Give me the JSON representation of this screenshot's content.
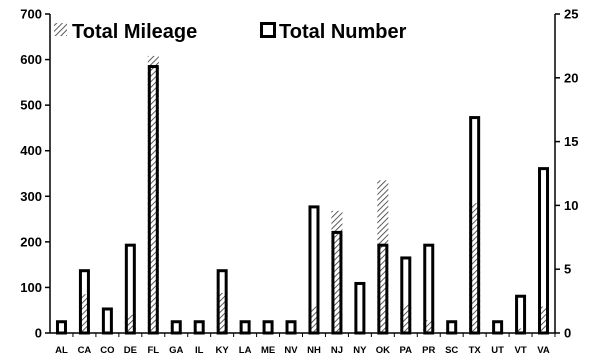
{
  "chart_data": {
    "type": "bar",
    "categories": [
      "AL",
      "CA",
      "CO",
      "DE",
      "FL",
      "GA",
      "IL",
      "KY",
      "LA",
      "ME",
      "NV",
      "NH",
      "NJ",
      "NY",
      "OK",
      "PA",
      "PR",
      "SC",
      "TX",
      "UT",
      "VT",
      "VA"
    ],
    "series": [
      {
        "name": "Total Mileage",
        "axis": "left",
        "style": "hatched",
        "values": [
          0,
          85,
          0,
          40,
          608,
          0,
          0,
          88,
          0,
          0,
          0,
          58,
          268,
          0,
          335,
          62,
          28,
          0,
          285,
          0,
          10,
          58
        ]
      },
      {
        "name": "Total Number",
        "axis": "right",
        "style": "hollow",
        "values": [
          1,
          5,
          2,
          7,
          21,
          1,
          1,
          5,
          1,
          1,
          1,
          10,
          8,
          4,
          7,
          6,
          7,
          1,
          17,
          1,
          3,
          13
        ]
      }
    ],
    "y_left": {
      "ylim": [
        0,
        700
      ],
      "ticks": [
        "0",
        "100",
        "200",
        "300",
        "400",
        "500",
        "600",
        "700"
      ]
    },
    "y_right": {
      "ylim": [
        0,
        25
      ],
      "ticks": [
        "0",
        "5",
        "10",
        "15",
        "20",
        "25"
      ]
    },
    "legend": {
      "placement": "top",
      "entries": [
        "Total Mileage",
        "Total Number"
      ]
    },
    "grid": false,
    "title": "",
    "xlabel": "",
    "ylabel": ""
  }
}
